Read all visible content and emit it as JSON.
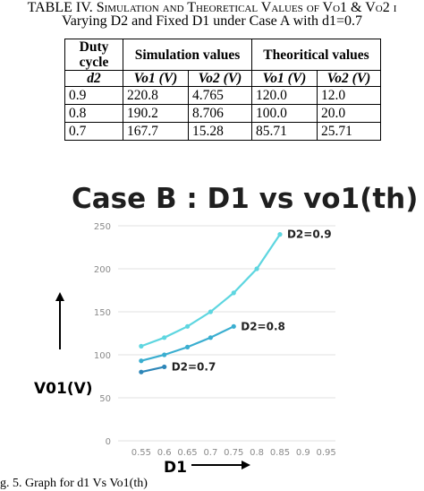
{
  "table": {
    "caption_line1_prefix": "TABLE IV.",
    "caption_line1_text": "Simulation and Theoretical Values of Vo1 & Vo2 i",
    "caption_line2_text": "Varying D2 and Fixed D1 under Case A with d1=0.7",
    "header_duty": "Duty cycle",
    "header_sim": "Simulation values",
    "header_theo": "Theoritical values",
    "sub_d2": "d2",
    "sub_vo1": "Vo1 (V)",
    "sub_vo2": "Vo2 (V)",
    "rows": [
      [
        "0.9",
        "220.8",
        "4.765",
        "120.0",
        "12.0"
      ],
      [
        "0.8",
        "190.2",
        "8.706",
        "100.0",
        "20.0"
      ],
      [
        "0.7",
        "167.7",
        "15.28",
        "85.71",
        "25.71"
      ]
    ]
  },
  "chart_data": {
    "type": "line",
    "title": "Case B : D1 vs vo1(th)",
    "xlabel": "D1",
    "ylabel": "V01(V)",
    "xlim": [
      0.5,
      0.97
    ],
    "ylim": [
      0,
      250
    ],
    "xticks": [
      "0.55",
      "0.6",
      "0.65",
      "0.7",
      "0.75",
      "0.8",
      "0.85",
      "0.9",
      "0.95"
    ],
    "yticks": [
      "0",
      "50",
      "100",
      "150",
      "200",
      "250"
    ],
    "grid": "horizontal",
    "series": [
      {
        "name": "D2=0.9",
        "color": "#5ed6e0",
        "x": [
          0.55,
          0.6,
          0.65,
          0.7,
          0.75,
          0.8,
          0.85
        ],
        "y": [
          110,
          120,
          133,
          150,
          172,
          200,
          240
        ]
      },
      {
        "name": "D2=0.8",
        "color": "#3aaed0",
        "x": [
          0.55,
          0.6,
          0.65,
          0.7,
          0.75
        ],
        "y": [
          93,
          100,
          109,
          120,
          133
        ]
      },
      {
        "name": "D2=0.7",
        "color": "#2e86b8",
        "x": [
          0.55,
          0.6
        ],
        "y": [
          80,
          86
        ]
      }
    ]
  },
  "figure_caption": "g. 5. Graph for d1 Vs Vo1(th)"
}
